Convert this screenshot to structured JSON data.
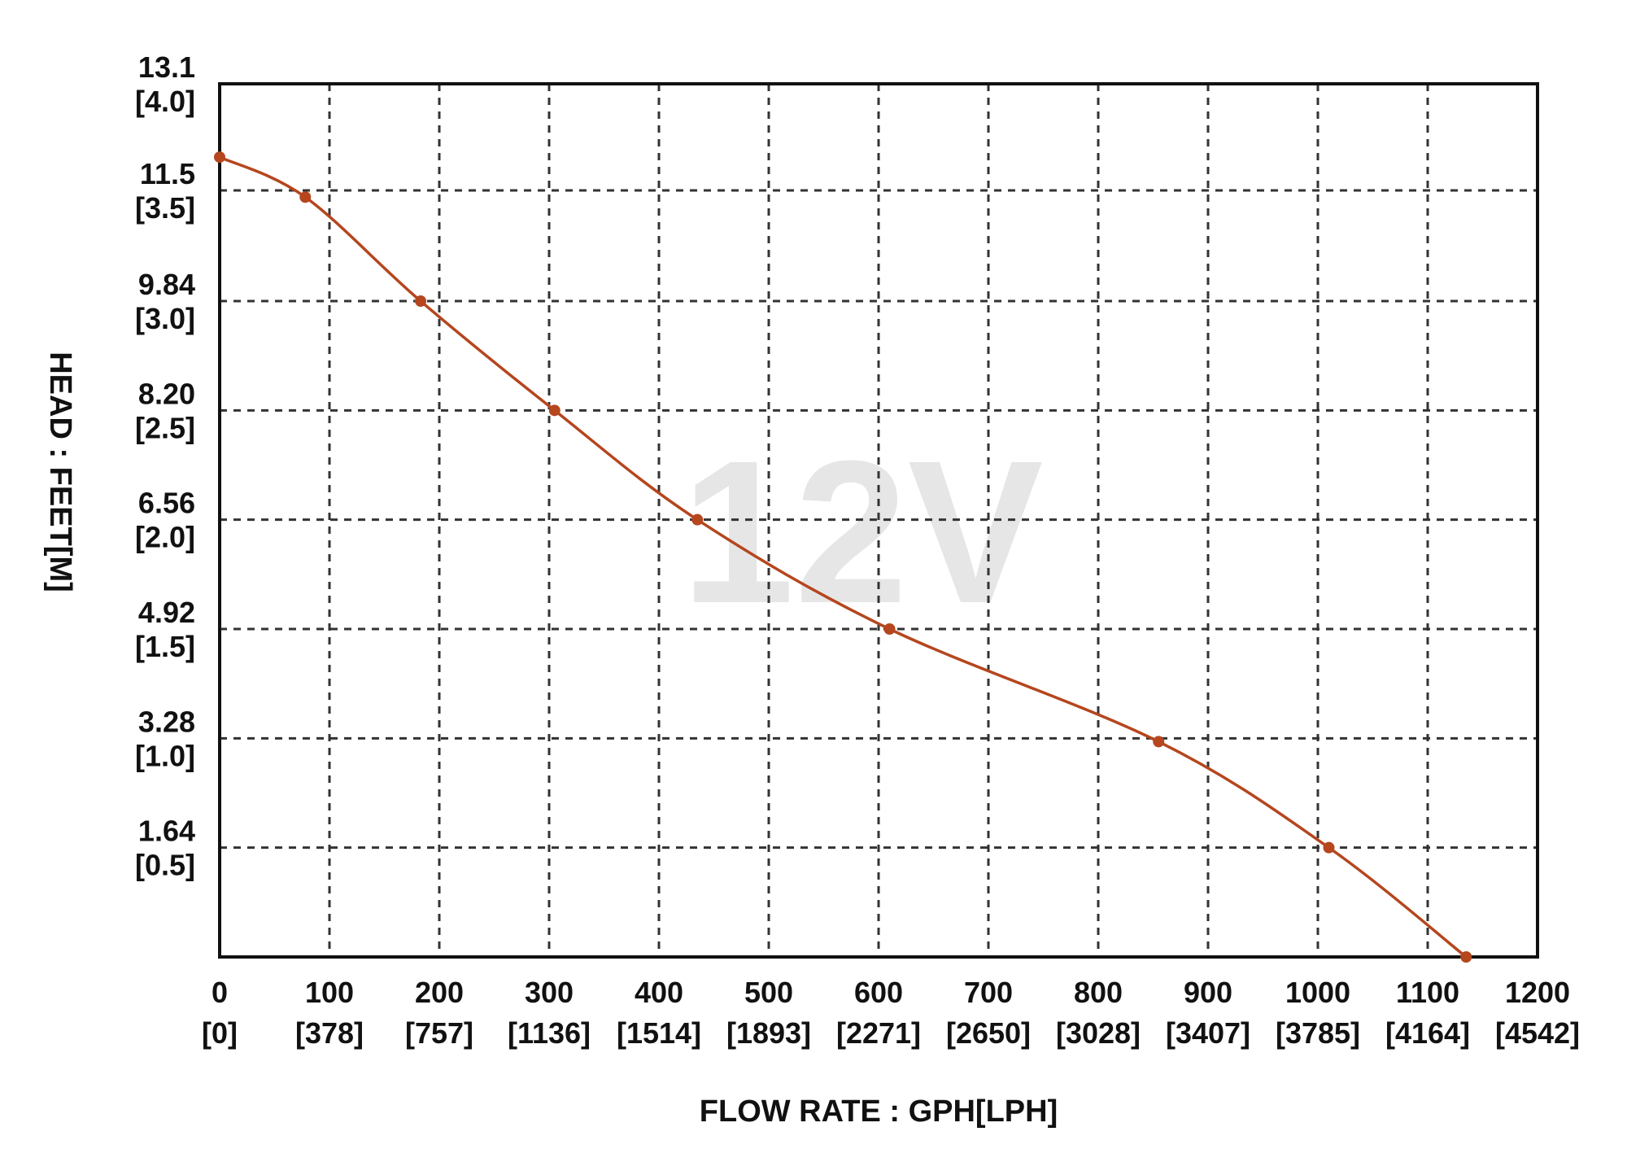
{
  "chart_data": {
    "type": "line",
    "watermark": "12V",
    "xlabel": "FLOW RATE : GPH[LPH]",
    "ylabel": "HEAD : FEET[M]",
    "xlim": [
      0,
      1200
    ],
    "ylim": [
      0,
      13.1
    ],
    "grid": true,
    "x_ticks": [
      {
        "value": 0,
        "label": "0",
        "sublabel": "[0]"
      },
      {
        "value": 100,
        "label": "100",
        "sublabel": "[378]"
      },
      {
        "value": 200,
        "label": "200",
        "sublabel": "[757]"
      },
      {
        "value": 300,
        "label": "300",
        "sublabel": "[1136]"
      },
      {
        "value": 400,
        "label": "400",
        "sublabel": "[1514]"
      },
      {
        "value": 500,
        "label": "500",
        "sublabel": "[1893]"
      },
      {
        "value": 600,
        "label": "600",
        "sublabel": "[2271]"
      },
      {
        "value": 700,
        "label": "700",
        "sublabel": "[2650]"
      },
      {
        "value": 800,
        "label": "800",
        "sublabel": "[3028]"
      },
      {
        "value": 900,
        "label": "900",
        "sublabel": "[3407]"
      },
      {
        "value": 1000,
        "label": "1000",
        "sublabel": "[3785]"
      },
      {
        "value": 1100,
        "label": "1100",
        "sublabel": "[4164]"
      },
      {
        "value": 1200,
        "label": "1200",
        "sublabel": "[4542]"
      }
    ],
    "y_ticks": [
      {
        "value": 1.64,
        "label": "1.64",
        "sublabel": "[0.5]"
      },
      {
        "value": 3.28,
        "label": "3.28",
        "sublabel": "[1.0]"
      },
      {
        "value": 4.92,
        "label": "4.92",
        "sublabel": "[1.5]"
      },
      {
        "value": 6.56,
        "label": "6.56",
        "sublabel": "[2.0]"
      },
      {
        "value": 8.2,
        "label": "8.20",
        "sublabel": "[2.5]"
      },
      {
        "value": 9.84,
        "label": "9.84",
        "sublabel": "[3.0]"
      },
      {
        "value": 11.5,
        "label": "11.5",
        "sublabel": "[3.5]"
      },
      {
        "value": 13.1,
        "label": "13.1",
        "sublabel": "[4.0]"
      }
    ],
    "series": [
      {
        "color": "#b5461e",
        "x": [
          0,
          78,
          183,
          305,
          435,
          610,
          855,
          1010,
          1135
        ],
        "y": [
          12.0,
          11.4,
          9.84,
          8.2,
          6.56,
          4.92,
          3.23,
          1.64,
          0
        ]
      }
    ]
  }
}
